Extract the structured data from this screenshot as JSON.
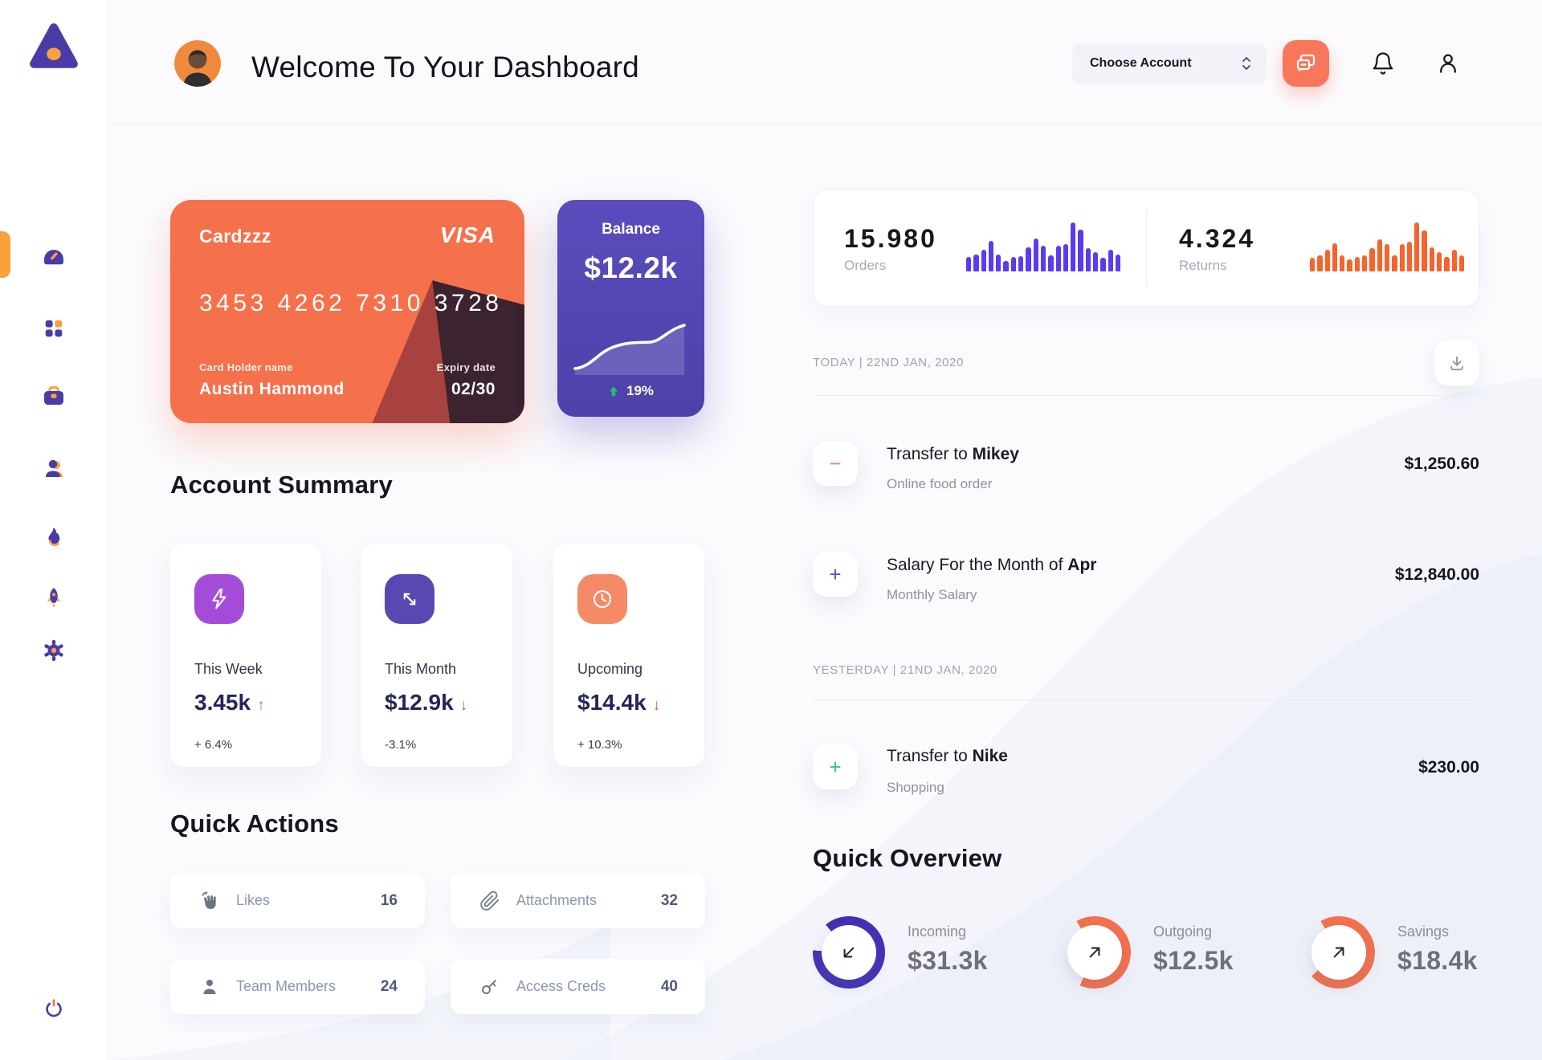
{
  "header": {
    "title": "Welcome To Your Dashboard",
    "account_selector_label": "Choose Account"
  },
  "sidebar": {
    "items": [
      {
        "icon": "gauge-dashboard",
        "active": true
      },
      {
        "icon": "apps-grid",
        "active": false
      },
      {
        "icon": "briefcase",
        "active": false
      },
      {
        "icon": "people",
        "active": false
      },
      {
        "icon": "flame",
        "active": false
      },
      {
        "icon": "rocket",
        "active": false
      },
      {
        "icon": "settings-gear",
        "active": false
      }
    ],
    "accent_orange": "#F9A13C",
    "accent_purple": "#4A3CA7"
  },
  "credit_card": {
    "name": "Cardzzz",
    "brand": "VISA",
    "number": "3453 4262 7310 3728",
    "holder_label": "Card Holder name",
    "holder_name": "Austin Hammond",
    "expiry_label": "Expiry date",
    "expiry": "02/30",
    "color": "#F5714B"
  },
  "balance_card": {
    "label": "Balance",
    "value": "$12.2k",
    "change": "19%",
    "trend": "up",
    "color": "#5649B6"
  },
  "stats": {
    "orders": {
      "value": "15.980",
      "label": "Orders",
      "bar_color": "#5B3BF0",
      "bars": [
        30,
        34,
        45,
        62,
        34,
        22,
        30,
        31,
        50,
        68,
        52,
        32,
        52,
        56,
        100,
        86,
        48,
        40,
        28,
        44,
        34
      ]
    },
    "returns": {
      "value": "4.324",
      "label": "Returns",
      "bar_color": "#F4642C",
      "bars": [
        28,
        33,
        44,
        58,
        33,
        24,
        30,
        33,
        48,
        66,
        55,
        33,
        55,
        60,
        100,
        84,
        50,
        40,
        30,
        44,
        33
      ]
    }
  },
  "account_summary": {
    "title": "Account Summary",
    "cards": [
      {
        "icon": "lightning",
        "icon_bg": "#A44BD8",
        "label": "This Week",
        "value": "3.45k",
        "trend_glyph": "↑",
        "trend_color": "#2BB67D",
        "percent": "+ 6.4%"
      },
      {
        "icon": "diagonal-arrows",
        "icon_bg": "#5748B2",
        "label": "This Month",
        "value": "$12.9k",
        "trend_glyph": "↓",
        "trend_color": "#E25A4D",
        "percent": "-3.1%"
      },
      {
        "icon": "clock",
        "icon_bg": "#F58A67",
        "label": "Upcoming",
        "value": "$14.4k",
        "trend_glyph": "↓",
        "trend_color": "#E25A4D",
        "percent": "+ 10.3%"
      }
    ]
  },
  "quick_actions": {
    "title": "Quick Actions",
    "items": [
      {
        "icon": "waving-hand",
        "label": "Likes",
        "count": "16"
      },
      {
        "icon": "paperclip",
        "label": "Attachments",
        "count": "32"
      },
      {
        "icon": "person",
        "label": "Team Members",
        "count": "24"
      },
      {
        "icon": "key",
        "label": "Access Creds",
        "count": "40"
      }
    ]
  },
  "transactions": {
    "groups": [
      {
        "heading": "TODAY | 22ND JAN, 2020",
        "rows": [
          {
            "sign_glyph": "−",
            "sign_color": "#F0875F",
            "title_prefix": "Transfer to ",
            "title_bold": "Mikey",
            "subtitle": "Online food order",
            "amount": "$1,250.60"
          },
          {
            "sign_glyph": "+",
            "sign_color": "#5F4FD8",
            "title_prefix": "Salary For the Month of ",
            "title_bold": "Apr",
            "subtitle": "Monthly Salary",
            "amount": "$12,840.00"
          }
        ]
      },
      {
        "heading": "YESTERDAY | 21ND JAN, 2020",
        "rows": [
          {
            "sign_glyph": "+",
            "sign_color": "#33C39A",
            "title_prefix": "Transfer to ",
            "title_bold": "Nike",
            "subtitle": "Shopping",
            "amount": "$230.00"
          }
        ]
      }
    ]
  },
  "quick_overview": {
    "title": "Quick Overview",
    "items": [
      {
        "label": "Incoming",
        "value": "$31.3k",
        "ring_color": "#432FB5",
        "percent": 87,
        "start_deg": 320,
        "arrow": "down-left"
      },
      {
        "label": "Outgoing",
        "value": "$12.5k",
        "ring_color": "#F4714C",
        "percent": 65,
        "start_deg": 330,
        "arrow": "up-right"
      },
      {
        "label": "Savings",
        "value": "$18.4k",
        "ring_color": "#F4714C",
        "percent": 72,
        "start_deg": 330,
        "arrow": "up-right"
      }
    ]
  }
}
